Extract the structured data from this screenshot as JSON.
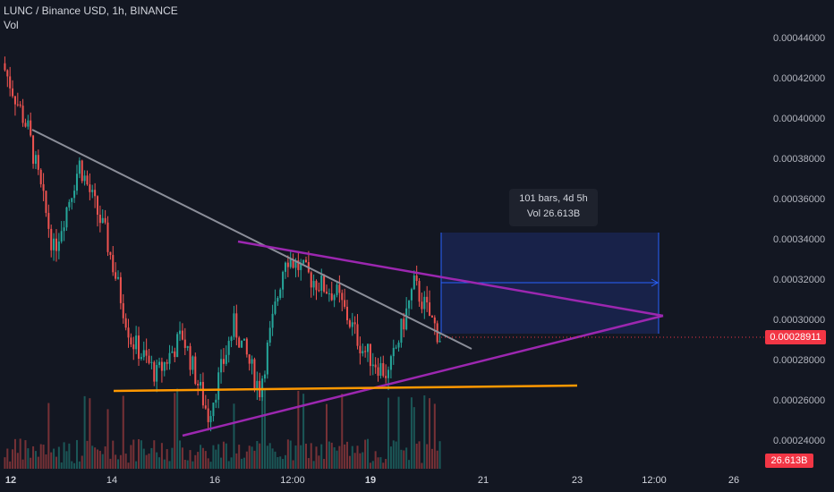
{
  "header": {
    "symbol_line": "LUNC / Binance USD, 1h, BINANCE",
    "indicator": "Vol"
  },
  "price_axis": {
    "ticks": [
      "0.00044000",
      "0.00042000",
      "0.00040000",
      "0.00038000",
      "0.00036000",
      "0.00034000",
      "0.00032000",
      "0.00030000",
      "0.00028000",
      "0.00026000",
      "0.00024000"
    ],
    "current_price": "0.00028911",
    "current_volume": "26.613B"
  },
  "time_axis": {
    "ticks": [
      {
        "label": "12",
        "bold": true
      },
      {
        "label": "14",
        "bold": false
      },
      {
        "label": "16",
        "bold": false
      },
      {
        "label": "12:00",
        "bold": false
      },
      {
        "label": "19",
        "bold": true
      },
      {
        "label": "21",
        "bold": false
      },
      {
        "label": "23",
        "bold": false
      },
      {
        "label": "12:00",
        "bold": false
      },
      {
        "label": "26",
        "bold": false
      }
    ]
  },
  "measure_tool": {
    "bars_line": "101 bars, 4d 5h",
    "vol_line": "Vol 26.613B"
  },
  "colors": {
    "background": "#131722",
    "up": "#26a69a",
    "down": "#ef5350",
    "resistance_line": "#8b8e99",
    "triangle": "#9c27b0",
    "support": "#ff9800",
    "measure_fill": "#1a2550",
    "measure_border": "#2962ff"
  },
  "chart_data": {
    "type": "candlestick",
    "symbol": "LUNC / Binance USD",
    "interval": "1h",
    "exchange": "BINANCE",
    "y_range": [
      0.000232,
      0.000452
    ],
    "last_close": 0.00028911,
    "last_volume": "26.613B",
    "close_path": [
      {
        "x": "12",
        "y": 0.000425
      },
      {
        "x": "12 ~06:00",
        "y": 0.000392
      },
      {
        "x": "12 ~12:00",
        "y": 0.000332
      },
      {
        "x": "13",
        "y": 0.000375
      },
      {
        "x": "13 ~12:00",
        "y": 0.00034
      },
      {
        "x": "14",
        "y": 0.000288
      },
      {
        "x": "14 ~12:00",
        "y": 0.00027
      },
      {
        "x": "15",
        "y": 0.00029
      },
      {
        "x": "15 ~12:00",
        "y": 0.00025
      },
      {
        "x": "16",
        "y": 0.000295
      },
      {
        "x": "16 ~12:00",
        "y": 0.000263
      },
      {
        "x": "17",
        "y": 0.00033
      },
      {
        "x": "17 12:00",
        "y": 0.000318
      },
      {
        "x": "18",
        "y": 0.00031
      },
      {
        "x": "18 ~12:00",
        "y": 0.000283
      },
      {
        "x": "19",
        "y": 0.00027
      },
      {
        "x": "19 ~06:00",
        "y": 0.000315
      },
      {
        "x": "19 ~18:00",
        "y": 0.000289
      }
    ]
  }
}
